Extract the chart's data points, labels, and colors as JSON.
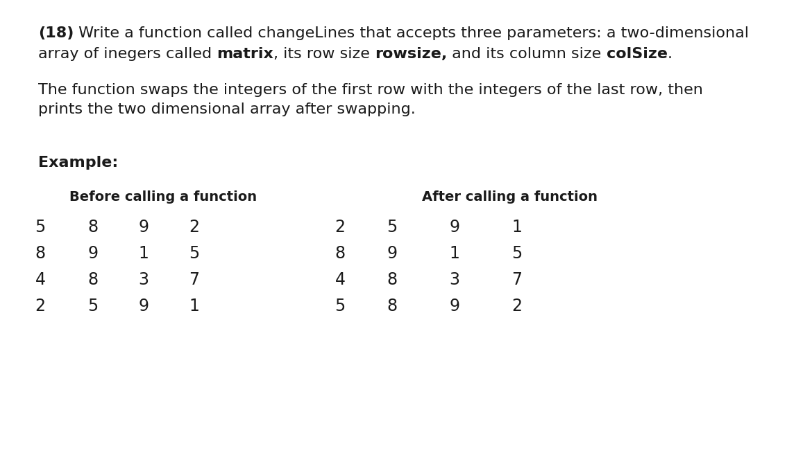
{
  "bg_color": "#ffffff",
  "text_color": "#1a1a1a",
  "font_family": "Georgia",
  "font_size_main": 16,
  "font_size_table_header": 14,
  "font_size_table_data": 17,
  "font_size_example": 16,
  "title_number": "(18)",
  "title_rest_line1": " Write a function called changeLines that accepts three parameters: a two-dimensional",
  "title_line2_segments": [
    [
      "array of inegers called ",
      false
    ],
    [
      "matrix",
      true
    ],
    [
      ", its row size ",
      false
    ],
    [
      "rowsize,",
      true
    ],
    [
      " and its column size ",
      false
    ],
    [
      "colSize",
      true
    ],
    [
      ".",
      false
    ]
  ],
  "body_line1": "The function swaps the integers of the first row with the integers of the last row, then",
  "body_line2": "prints the two dimensional array after swapping.",
  "example_label": "Example:",
  "before_label": "Before calling a function",
  "after_label": "After calling a function",
  "before_matrix": [
    [
      5,
      8,
      9,
      2
    ],
    [
      8,
      9,
      1,
      5
    ],
    [
      4,
      8,
      3,
      7
    ],
    [
      2,
      5,
      9,
      1
    ]
  ],
  "after_matrix": [
    [
      2,
      5,
      9,
      1
    ],
    [
      8,
      9,
      1,
      5
    ],
    [
      4,
      8,
      3,
      7
    ],
    [
      5,
      8,
      9,
      2
    ]
  ]
}
